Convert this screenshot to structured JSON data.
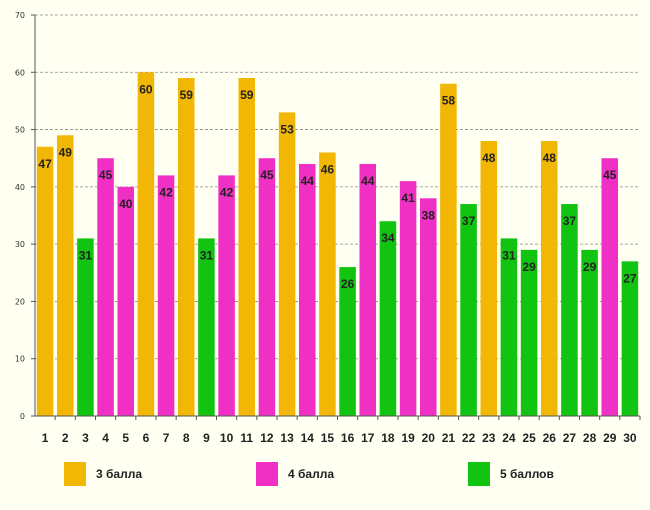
{
  "chart_data": {
    "type": "bar",
    "title": "",
    "xlabel": "",
    "ylabel": "",
    "ylim": [
      0,
      70
    ],
    "yticks": [
      0,
      10,
      20,
      30,
      40,
      50,
      60,
      70
    ],
    "grid": true,
    "categories": [
      "1",
      "2",
      "3",
      "4",
      "5",
      "6",
      "7",
      "8",
      "9",
      "10",
      "11",
      "12",
      "13",
      "14",
      "15",
      "16",
      "17",
      "18",
      "19",
      "20",
      "21",
      "22",
      "23",
      "24",
      "25",
      "26",
      "27",
      "28",
      "29",
      "30"
    ],
    "values": [
      47,
      49,
      31,
      45,
      40,
      60,
      42,
      59,
      31,
      42,
      59,
      45,
      53,
      44,
      46,
      26,
      44,
      34,
      41,
      38,
      58,
      37,
      48,
      31,
      29,
      48,
      37,
      29,
      45,
      27
    ],
    "groups": [
      0,
      0,
      2,
      1,
      1,
      0,
      1,
      0,
      2,
      1,
      0,
      1,
      0,
      1,
      0,
      2,
      1,
      2,
      1,
      1,
      0,
      2,
      0,
      2,
      2,
      0,
      2,
      2,
      1,
      2
    ],
    "legend": [
      {
        "label": "3 балла",
        "color": "#f2b705"
      },
      {
        "label": "4 балла",
        "color": "#f02fc4"
      },
      {
        "label": "5 баллов",
        "color": "#12c412"
      }
    ]
  }
}
